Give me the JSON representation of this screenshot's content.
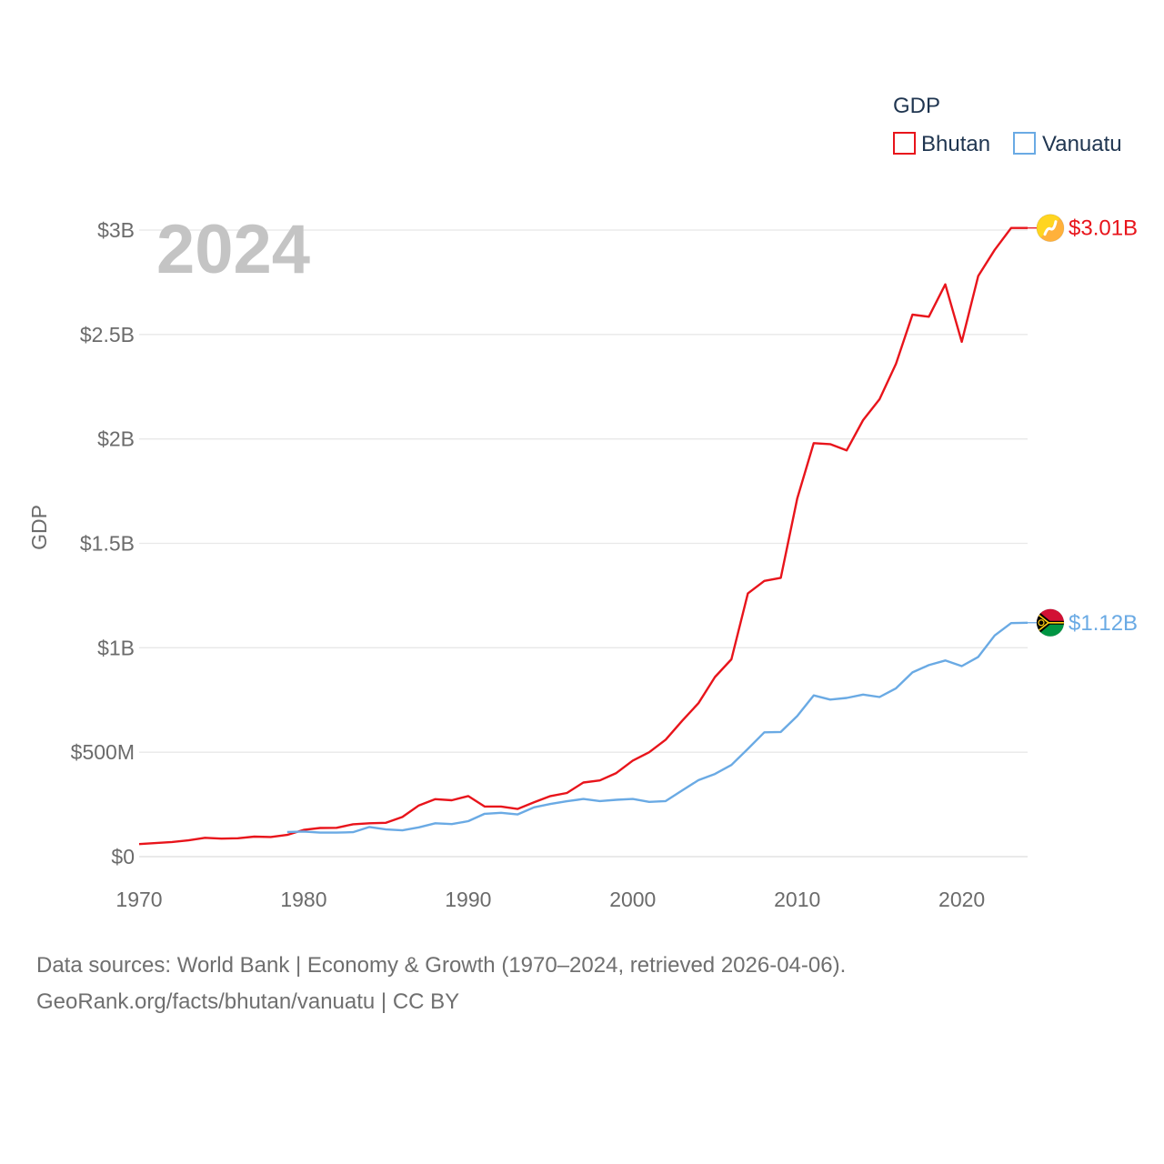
{
  "chart_data": {
    "type": "line",
    "ylabel": "GDP",
    "xlabel": "",
    "legend_title": "GDP",
    "legend_position": "top-right",
    "current_year_label": "2024",
    "xlim": [
      1970,
      2024
    ],
    "ylim": [
      0,
      3000000000
    ],
    "x_ticks": [
      1970,
      1980,
      1990,
      2000,
      2010,
      2020
    ],
    "x_tick_labels": [
      "1970",
      "1980",
      "1990",
      "2000",
      "2010",
      "2020"
    ],
    "y_ticks": [
      0,
      500000000,
      1000000000,
      1500000000,
      2000000000,
      2500000000,
      3000000000
    ],
    "y_tick_labels": [
      "$0",
      "$500M",
      "$1B",
      "$1.5B",
      "$2B",
      "$2.5B",
      "$3B"
    ],
    "series": [
      {
        "name": "Bhutan",
        "color": "#e8141b",
        "end_label": "$3.01B",
        "flag_icon": "bhutan-flag-icon",
        "x": [
          1970,
          1971,
          1972,
          1973,
          1974,
          1975,
          1976,
          1977,
          1978,
          1979,
          1980,
          1981,
          1982,
          1983,
          1984,
          1985,
          1986,
          1987,
          1988,
          1989,
          1990,
          1991,
          1992,
          1993,
          1994,
          1995,
          1996,
          1997,
          1998,
          1999,
          2000,
          2001,
          2002,
          2003,
          2004,
          2005,
          2006,
          2007,
          2008,
          2009,
          2010,
          2011,
          2012,
          2013,
          2014,
          2015,
          2016,
          2017,
          2018,
          2019,
          2020,
          2021,
          2022,
          2023,
          2024
        ],
        "values": [
          60000000,
          65000000,
          70000000,
          78000000,
          90000000,
          86000000,
          88000000,
          96000000,
          94000000,
          104000000,
          128000000,
          137000000,
          138000000,
          155000000,
          160000000,
          162000000,
          190000000,
          245000000,
          275000000,
          270000000,
          290000000,
          240000000,
          240000000,
          228000000,
          260000000,
          290000000,
          305000000,
          355000000,
          365000000,
          400000000,
          460000000,
          500000000,
          560000000,
          650000000,
          735000000,
          860000000,
          945000000,
          1260000000,
          1320000000,
          1335000000,
          1715000000,
          1980000000,
          1975000000,
          1945000000,
          2090000000,
          2190000000,
          2360000000,
          2595000000,
          2585000000,
          2740000000,
          2465000000,
          2780000000,
          2905000000,
          3010000000,
          3010000000
        ]
      },
      {
        "name": "Vanuatu",
        "color": "#6aaae4",
        "end_label": "$1.12B",
        "flag_icon": "vanuatu-flag-icon",
        "x": [
          1979,
          1980,
          1981,
          1982,
          1983,
          1984,
          1985,
          1986,
          1987,
          1988,
          1989,
          1990,
          1991,
          1992,
          1993,
          1994,
          1995,
          1996,
          1997,
          1998,
          1999,
          2000,
          2001,
          2002,
          2003,
          2004,
          2005,
          2006,
          2007,
          2008,
          2009,
          2010,
          2011,
          2012,
          2013,
          2014,
          2015,
          2016,
          2017,
          2018,
          2019,
          2020,
          2021,
          2022,
          2023,
          2024
        ],
        "values": [
          118000000,
          120000000,
          115000000,
          115000000,
          117000000,
          142000000,
          130000000,
          126000000,
          140000000,
          160000000,
          156000000,
          170000000,
          205000000,
          210000000,
          202000000,
          236000000,
          252000000,
          265000000,
          276000000,
          266000000,
          272000000,
          276000000,
          262000000,
          266000000,
          317000000,
          366000000,
          396000000,
          439000000,
          516000000,
          595000000,
          597000000,
          673000000,
          772000000,
          752000000,
          760000000,
          776000000,
          764000000,
          806000000,
          882000000,
          917000000,
          939000000,
          912000000,
          956000000,
          1059000000,
          1118000000,
          1120000000
        ]
      }
    ]
  },
  "footer": {
    "line1": "Data sources: World Bank | Economy & Growth (1970–2024, retrieved 2026-04-06).",
    "line2": "GeoRank.org/facts/bhutan/vanuatu | CC BY"
  }
}
